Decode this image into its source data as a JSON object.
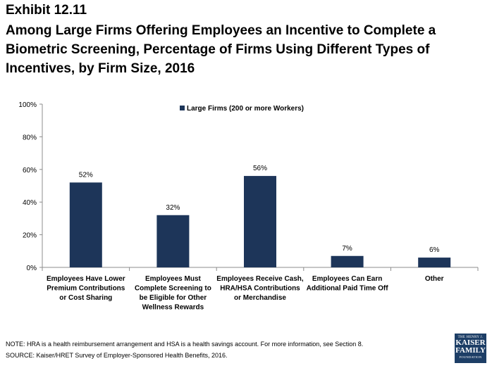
{
  "header": {
    "exhibit": "Exhibit 12.11",
    "title": "Among Large Firms Offering Employees an Incentive to Complete a Biometric Screening, Percentage of Firms Using Different Types of Incentives, by Firm Size, 2016"
  },
  "chart_data": {
    "type": "bar",
    "categories": [
      [
        "Employees Have Lower",
        "Premium Contributions",
        "or Cost Sharing"
      ],
      [
        "Employees Must",
        "Complete Screening to",
        "be Eligible for Other",
        "Wellness Rewards"
      ],
      [
        "Employees Receive Cash,",
        "HRA/HSA Contributions",
        "or Merchandise"
      ],
      [
        "Employees Can Earn",
        "Additional Paid Time Off"
      ],
      [
        "Other"
      ]
    ],
    "series": [
      {
        "name": "Large Firms (200 or more Workers)",
        "values": [
          52,
          32,
          56,
          7,
          6
        ],
        "color": "#1d3559"
      }
    ],
    "data_labels": [
      "52%",
      "32%",
      "56%",
      "7%",
      "6%"
    ],
    "y_ticks": [
      "0%",
      "20%",
      "40%",
      "60%",
      "80%",
      "100%"
    ],
    "ylim": [
      0,
      100
    ],
    "grid": false,
    "legend_position": "top-center"
  },
  "footer": {
    "note": "NOTE: HRA is a health reimbursement arrangement and HSA is a health savings account. For more information, see Section 8.",
    "source": "SOURCE: Kaiser/HRET Survey of Employer-Sponsored Health Benefits, 2016.",
    "logo": {
      "line1": "THE HENRY J.",
      "line2a": "KAISER",
      "line2b": "FAMILY",
      "line3": "FOUNDATION"
    }
  }
}
